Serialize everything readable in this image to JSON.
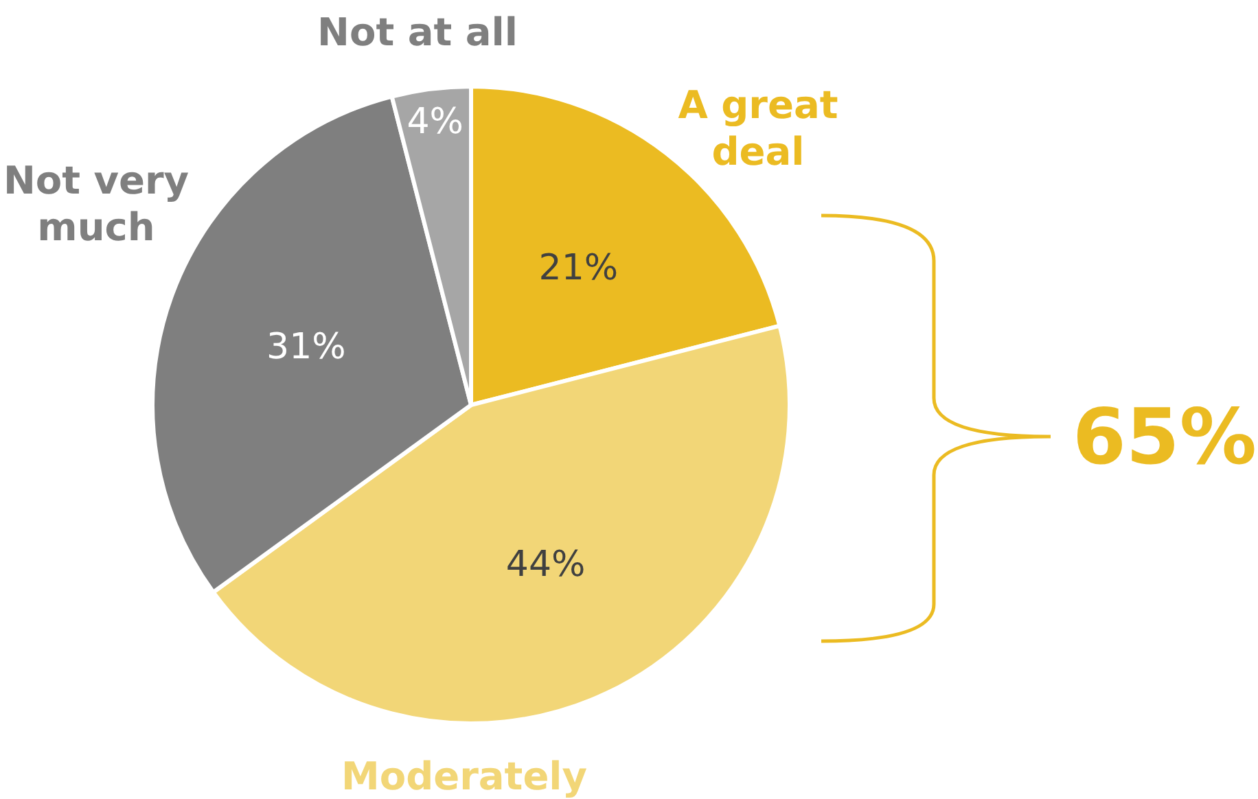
{
  "chart_data": {
    "type": "pie",
    "categories": [
      "A great deal",
      "Moderately",
      "Not very much",
      "Not at all"
    ],
    "values": [
      21,
      44,
      31,
      4
    ],
    "colors": [
      "#ebbb22",
      "#f2d677",
      "#7f7f7f",
      "#a6a6a6"
    ],
    "value_labels": [
      "21%",
      "44%",
      "31%",
      "4%"
    ],
    "annotations": [
      "65%"
    ]
  }
}
